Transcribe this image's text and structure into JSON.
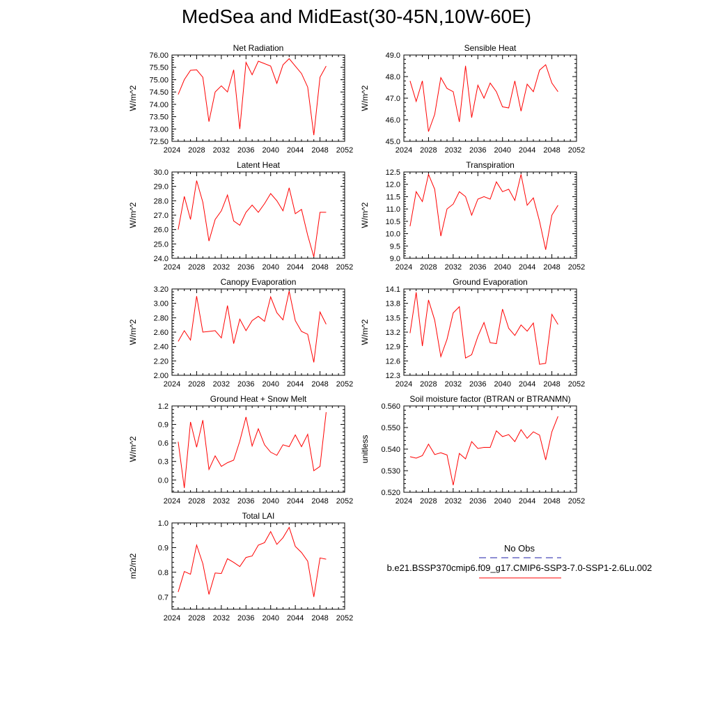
{
  "page": {
    "title": "MedSea and MidEast(30-45N,10W-60E)"
  },
  "colors": {
    "series": "#ff0000",
    "obs": "#1e1ea8",
    "axis": "#000000"
  },
  "legend": {
    "obs_label": "No Obs",
    "model_label": "b.e21.BSSP370cmip6.f09_g17.CMIP6-SSP3-7.0-SSP1-2.6Lu.002"
  },
  "chart_data": [
    {
      "type": "line",
      "title": "Net Radiation",
      "ylabel": "W/m^2",
      "xlim": [
        2024,
        2052
      ],
      "ylim": [
        72.5,
        76.0
      ],
      "xticks": [
        2024,
        2028,
        2032,
        2036,
        2040,
        2044,
        2048,
        2052
      ],
      "yticks": [
        72.5,
        73.0,
        73.5,
        74.0,
        74.5,
        75.0,
        75.5,
        76.0
      ],
      "ytick_labels": [
        "72.50",
        "73.00",
        "73.50",
        "74.00",
        "74.50",
        "75.00",
        "75.50",
        "76.00"
      ],
      "x": [
        2025,
        2026,
        2027,
        2028,
        2029,
        2030,
        2031,
        2032,
        2033,
        2034,
        2035,
        2036,
        2037,
        2038,
        2039,
        2040,
        2041,
        2042,
        2043,
        2044,
        2045,
        2046,
        2047,
        2048,
        2049
      ],
      "values": [
        74.4,
        75.0,
        75.38,
        75.4,
        75.1,
        73.3,
        74.5,
        74.75,
        74.5,
        75.4,
        73.0,
        75.7,
        75.2,
        75.75,
        75.65,
        75.55,
        74.85,
        75.6,
        75.85,
        75.55,
        75.25,
        74.7,
        72.75,
        75.1,
        75.55
      ]
    },
    {
      "type": "line",
      "title": "Sensible Heat",
      "ylabel": "W/m^2",
      "xlim": [
        2024,
        2052
      ],
      "ylim": [
        45.0,
        49.0
      ],
      "xticks": [
        2024,
        2028,
        2032,
        2036,
        2040,
        2044,
        2048,
        2052
      ],
      "yticks": [
        45.0,
        46.0,
        47.0,
        48.0,
        49.0
      ],
      "ytick_labels": [
        "45.0",
        "46.0",
        "47.0",
        "48.0",
        "49.0"
      ],
      "x": [
        2025,
        2026,
        2027,
        2028,
        2029,
        2030,
        2031,
        2032,
        2033,
        2034,
        2035,
        2036,
        2037,
        2038,
        2039,
        2040,
        2041,
        2042,
        2043,
        2044,
        2045,
        2046,
        2047,
        2048,
        2049
      ],
      "values": [
        47.8,
        46.85,
        47.8,
        45.45,
        46.25,
        47.95,
        47.45,
        47.3,
        45.9,
        48.5,
        46.1,
        47.6,
        47.0,
        47.7,
        47.3,
        46.6,
        46.55,
        47.8,
        46.4,
        47.65,
        47.3,
        48.3,
        48.55,
        47.7,
        47.3
      ]
    },
    {
      "type": "line",
      "title": "Latent Heat",
      "ylabel": "W/m^2",
      "xlim": [
        2024,
        2052
      ],
      "ylim": [
        24.0,
        30.0
      ],
      "xticks": [
        2024,
        2028,
        2032,
        2036,
        2040,
        2044,
        2048,
        2052
      ],
      "yticks": [
        24.0,
        25.0,
        26.0,
        27.0,
        28.0,
        29.0,
        30.0
      ],
      "ytick_labels": [
        "24.0",
        "25.0",
        "26.0",
        "27.0",
        "28.0",
        "29.0",
        "30.0"
      ],
      "x": [
        2025,
        2026,
        2027,
        2028,
        2029,
        2030,
        2031,
        2032,
        2033,
        2034,
        2035,
        2036,
        2037,
        2038,
        2039,
        2040,
        2041,
        2042,
        2043,
        2044,
        2045,
        2046,
        2047,
        2048,
        2049
      ],
      "values": [
        26.0,
        28.3,
        26.7,
        29.4,
        27.9,
        25.2,
        26.7,
        27.3,
        28.4,
        26.6,
        26.3,
        27.2,
        27.7,
        27.2,
        27.8,
        28.5,
        28.0,
        27.3,
        28.9,
        27.1,
        27.4,
        25.6,
        24.1,
        27.2,
        27.2
      ]
    },
    {
      "type": "line",
      "title": "Transpiration",
      "ylabel": "W/m^2",
      "xlim": [
        2024,
        2052
      ],
      "ylim": [
        9.0,
        12.5
      ],
      "xticks": [
        2024,
        2028,
        2032,
        2036,
        2040,
        2044,
        2048,
        2052
      ],
      "yticks": [
        9.0,
        9.5,
        10.0,
        10.5,
        11.0,
        11.5,
        12.0,
        12.5
      ],
      "ytick_labels": [
        "9.0",
        "9.5",
        "10.0",
        "10.5",
        "11.0",
        "11.5",
        "12.0",
        "12.5"
      ],
      "x": [
        2025,
        2026,
        2027,
        2028,
        2029,
        2030,
        2031,
        2032,
        2033,
        2034,
        2035,
        2036,
        2037,
        2038,
        2039,
        2040,
        2041,
        2042,
        2043,
        2044,
        2045,
        2046,
        2047,
        2048,
        2049
      ],
      "values": [
        10.3,
        11.7,
        11.3,
        12.4,
        11.8,
        9.9,
        11.0,
        11.2,
        11.7,
        11.5,
        10.75,
        11.4,
        11.5,
        11.4,
        12.1,
        11.7,
        11.8,
        11.35,
        12.4,
        11.15,
        11.45,
        10.5,
        9.35,
        10.75,
        11.15
      ]
    },
    {
      "type": "line",
      "title": "Canopy Evaporation",
      "ylabel": "W/m^2",
      "xlim": [
        2024,
        2052
      ],
      "ylim": [
        2.0,
        3.2
      ],
      "xticks": [
        2024,
        2028,
        2032,
        2036,
        2040,
        2044,
        2048,
        2052
      ],
      "yticks": [
        2.0,
        2.2,
        2.4,
        2.6,
        2.8,
        3.0,
        3.2
      ],
      "ytick_labels": [
        "2.00",
        "2.20",
        "2.40",
        "2.60",
        "2.80",
        "3.00",
        "3.20"
      ],
      "x": [
        2025,
        2026,
        2027,
        2028,
        2029,
        2030,
        2031,
        2032,
        2033,
        2034,
        2035,
        2036,
        2037,
        2038,
        2039,
        2040,
        2041,
        2042,
        2043,
        2044,
        2045,
        2046,
        2047,
        2048,
        2049
      ],
      "values": [
        2.47,
        2.62,
        2.49,
        3.1,
        2.6,
        2.61,
        2.62,
        2.52,
        2.97,
        2.44,
        2.78,
        2.62,
        2.76,
        2.82,
        2.75,
        3.09,
        2.87,
        2.77,
        3.17,
        2.76,
        2.61,
        2.57,
        2.18,
        2.88,
        2.71
      ]
    },
    {
      "type": "line",
      "title": "Ground Evaporation",
      "ylabel": "W/m^2",
      "xlim": [
        2024,
        2052
      ],
      "ylim": [
        12.3,
        14.1
      ],
      "xticks": [
        2024,
        2028,
        2032,
        2036,
        2040,
        2044,
        2048,
        2052
      ],
      "yticks": [
        12.3,
        12.6,
        12.9,
        13.2,
        13.5,
        13.8,
        14.1
      ],
      "ytick_labels": [
        "12.3",
        "12.6",
        "12.9",
        "13.2",
        "13.5",
        "13.8",
        "14.1"
      ],
      "x": [
        2025,
        2026,
        2027,
        2028,
        2029,
        2030,
        2031,
        2032,
        2033,
        2034,
        2035,
        2036,
        2037,
        2038,
        2039,
        2040,
        2041,
        2042,
        2043,
        2044,
        2045,
        2046,
        2047,
        2048,
        2049
      ],
      "values": [
        13.18,
        14.03,
        12.91,
        13.87,
        13.45,
        12.69,
        13.05,
        13.6,
        13.73,
        12.66,
        12.73,
        13.11,
        13.4,
        12.98,
        12.96,
        13.68,
        13.28,
        13.13,
        13.35,
        13.22,
        13.39,
        12.53,
        12.55,
        13.57,
        13.36
      ]
    },
    {
      "type": "line",
      "title": "Ground Heat + Snow Melt",
      "ylabel": "W/m^2",
      "xlim": [
        2024,
        2052
      ],
      "ylim": [
        -0.2,
        1.2
      ],
      "xticks": [
        2024,
        2028,
        2032,
        2036,
        2040,
        2044,
        2048,
        2052
      ],
      "yticks": [
        0.0,
        0.3,
        0.6,
        0.9,
        1.2
      ],
      "ytick_labels": [
        "0.0",
        "0.3",
        "0.6",
        "0.9",
        "1.2"
      ],
      "x": [
        2025,
        2026,
        2027,
        2028,
        2029,
        2030,
        2031,
        2032,
        2033,
        2034,
        2035,
        2036,
        2037,
        2038,
        2039,
        2040,
        2041,
        2042,
        2043,
        2044,
        2045,
        2046,
        2047,
        2048,
        2049
      ],
      "values": [
        0.62,
        -0.13,
        0.94,
        0.53,
        0.97,
        0.17,
        0.39,
        0.22,
        0.28,
        0.32,
        0.63,
        1.02,
        0.55,
        0.83,
        0.57,
        0.45,
        0.4,
        0.57,
        0.54,
        0.73,
        0.54,
        0.74,
        0.15,
        0.22,
        1.1
      ]
    },
    {
      "type": "line",
      "title": "Soil moisture factor (BTRAN or BTRANMN)",
      "ylabel": "unitless",
      "xlim": [
        2024,
        2052
      ],
      "ylim": [
        0.52,
        0.56
      ],
      "xticks": [
        2024,
        2028,
        2032,
        2036,
        2040,
        2044,
        2048,
        2052
      ],
      "yticks": [
        0.52,
        0.53,
        0.54,
        0.55,
        0.56
      ],
      "ytick_labels": [
        "0.520",
        "0.530",
        "0.540",
        "0.550",
        "0.560"
      ],
      "x": [
        2025,
        2026,
        2027,
        2028,
        2029,
        2030,
        2031,
        2032,
        2033,
        2034,
        2035,
        2036,
        2037,
        2038,
        2039,
        2040,
        2041,
        2042,
        2043,
        2044,
        2045,
        2046,
        2047,
        2048,
        2049
      ],
      "values": [
        0.5365,
        0.5358,
        0.537,
        0.5423,
        0.5375,
        0.5383,
        0.5373,
        0.5233,
        0.538,
        0.5355,
        0.5435,
        0.5403,
        0.5408,
        0.5408,
        0.5485,
        0.5458,
        0.5467,
        0.5435,
        0.549,
        0.545,
        0.548,
        0.5465,
        0.535,
        0.548,
        0.5552
      ]
    },
    {
      "type": "line",
      "title": "Total LAI",
      "ylabel": "m2/m2",
      "xlim": [
        2024,
        2052
      ],
      "ylim": [
        0.65,
        1.0
      ],
      "xticks": [
        2024,
        2028,
        2032,
        2036,
        2040,
        2044,
        2048,
        2052
      ],
      "yticks": [
        0.7,
        0.8,
        0.9,
        1.0
      ],
      "ytick_labels": [
        "0.7",
        "0.8",
        "0.9",
        "1.0"
      ],
      "x": [
        2025,
        2026,
        2027,
        2028,
        2029,
        2030,
        2031,
        2032,
        2033,
        2034,
        2035,
        2036,
        2037,
        2038,
        2039,
        2040,
        2041,
        2042,
        2043,
        2044,
        2045,
        2046,
        2047,
        2048,
        2049
      ],
      "values": [
        0.72,
        0.803,
        0.792,
        0.91,
        0.835,
        0.71,
        0.797,
        0.795,
        0.855,
        0.84,
        0.823,
        0.86,
        0.866,
        0.91,
        0.92,
        0.965,
        0.913,
        0.94,
        0.982,
        0.905,
        0.88,
        0.845,
        0.7,
        0.858,
        0.853
      ]
    }
  ]
}
